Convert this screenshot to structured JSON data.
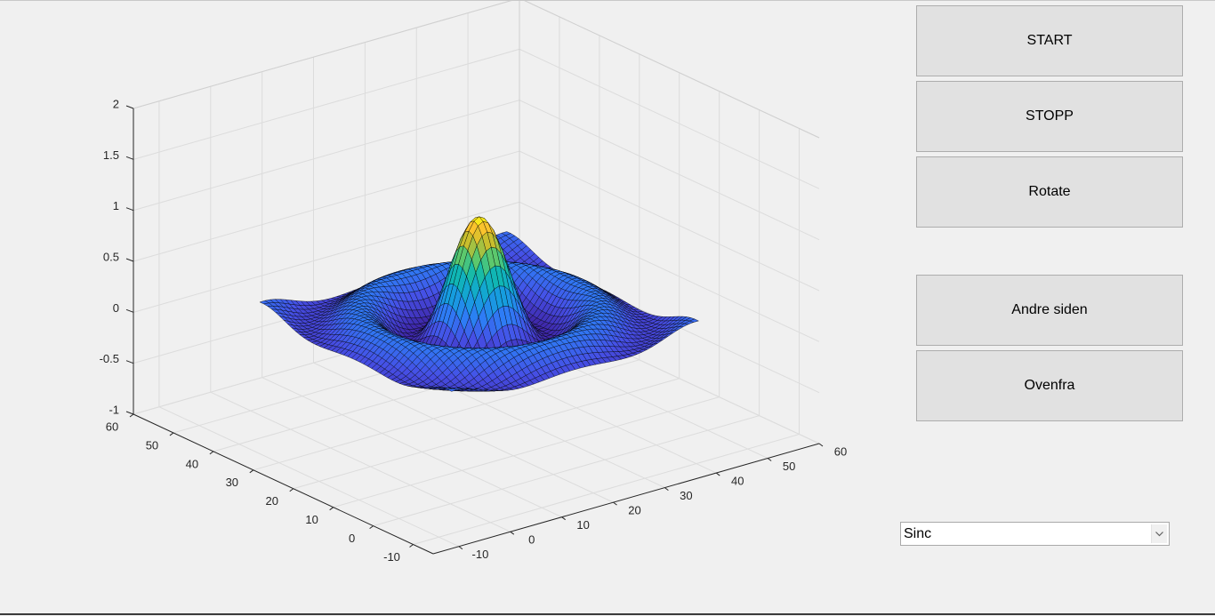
{
  "buttons": {
    "start": "START",
    "stop": "STOPP",
    "rotate": "Rotate",
    "other_side": "Andre siden",
    "from_above": "Ovenfra"
  },
  "function_select": {
    "selected": "Sinc"
  },
  "chart_data": {
    "type": "surface",
    "function": "sinc",
    "colormap": "parula",
    "grid": true,
    "x_ticks": [
      -10,
      0,
      10,
      20,
      30,
      40,
      50,
      60
    ],
    "y_ticks": [
      -10,
      0,
      10,
      20,
      30,
      40,
      50,
      60
    ],
    "z_ticks": [
      -1,
      -0.5,
      0,
      0.5,
      1,
      1.5,
      2
    ],
    "x_tick_labels": [
      "-10",
      "0",
      "10",
      "20",
      "30",
      "40",
      "50",
      "60"
    ],
    "y_tick_labels": [
      "-10",
      "0",
      "10",
      "20",
      "30",
      "40",
      "50",
      "60"
    ],
    "z_tick_labels": [
      "-1",
      "-0.5",
      "0",
      "0.5",
      "1",
      "1.5",
      "2"
    ],
    "xlim": [
      -15,
      60
    ],
    "ylim": [
      -15,
      60
    ],
    "zlim": [
      -1,
      2
    ],
    "mesh_size": 49,
    "peak_value": 1
  }
}
